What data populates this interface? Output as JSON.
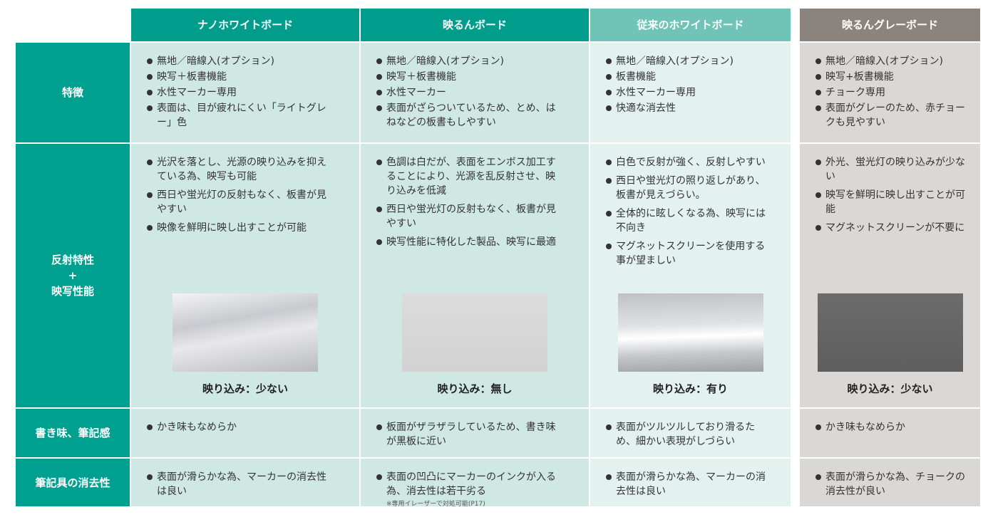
{
  "header": {
    "columns": [
      "ナノホワイトボード",
      "映るんボード",
      "従来のホワイトボード",
      "映るんグレーボード"
    ]
  },
  "rows": [
    {
      "label": [
        "特徴"
      ],
      "cells": [
        {
          "items": [
            "無地／暗線入(オプション)",
            "映写＋板書機能",
            "水性マーカー専用",
            "表面は、目が疲れにくい「ライトグレー」色"
          ]
        },
        {
          "items": [
            "無地／暗線入(オプション)",
            "映写＋板書機能",
            "水性マーカー",
            "表面がざらついているため、とめ、はねなどの板書もしやすい"
          ]
        },
        {
          "items": [
            "無地／暗線入(オプション)",
            "板書機能",
            "水性マーカー専用",
            "快適な消去性"
          ]
        },
        {
          "items": [
            "無地／暗線入(オプション)",
            "映写+板書機能",
            "チョーク専用",
            "表面がグレーのため、赤チョークも見やすい"
          ]
        }
      ]
    },
    {
      "label": [
        "反射特性",
        "+",
        "映写性能"
      ],
      "cells": [
        {
          "items": [
            "光沢を落とし、光源の映り込みを抑えている為、映写も可能",
            "西日や蛍光灯の反射もなく、板書が見やすい",
            "映像を鮮明に映し出すことが可能"
          ],
          "caption": "映り込み：少ない"
        },
        {
          "items": [
            "色調は白だが、表面をエンボス加工することにより、光源を乱反射させ、映り込みを低減",
            "西日や蛍光灯の反射もなく、板書が見やすい",
            "映写性能に特化した製品、映写に最適"
          ],
          "caption": "映り込み：無し"
        },
        {
          "items": [
            "白色で反射が強く、反射しやすい",
            "西日や蛍光灯の照り返しがあり、板書が見えづらい。",
            "全体的に眩しくなる為、映写には不向き",
            "マグネットスクリーンを使用する事が望ましい"
          ],
          "caption": "映り込み：有り"
        },
        {
          "items": [
            "外光、蛍光灯の映り込みが少ない",
            "映写を鮮明に映し出すことが可能",
            "マグネットスクリーンが不要に"
          ],
          "caption": "映り込み：少ない"
        }
      ]
    },
    {
      "label": [
        "書き味、筆記感"
      ],
      "cells": [
        {
          "items": [
            "かき味もなめらか"
          ]
        },
        {
          "items": [
            "板面がザラザラしているため、書き味が黒板に近い"
          ]
        },
        {
          "items": [
            "表面がツルツルしており滑るため、細かい表現がしづらい"
          ]
        },
        {
          "items": [
            "かき味もなめらか"
          ]
        }
      ]
    },
    {
      "label": [
        "筆記具の消去性"
      ],
      "cells": [
        {
          "items": [
            "表面が滑らかな為、マーカーの消去性は良い"
          ]
        },
        {
          "items": [
            "表面の凹凸にマーカーのインクが入る為、消去性は若干劣る"
          ],
          "note": "※専用イレーザーで対処可能(P17)"
        },
        {
          "items": [
            "表面が滑らかな為、マーカーの消去性は良い"
          ]
        },
        {
          "items": [
            "表面が滑らかな為、チョークの消去性が良い"
          ]
        }
      ]
    }
  ]
}
